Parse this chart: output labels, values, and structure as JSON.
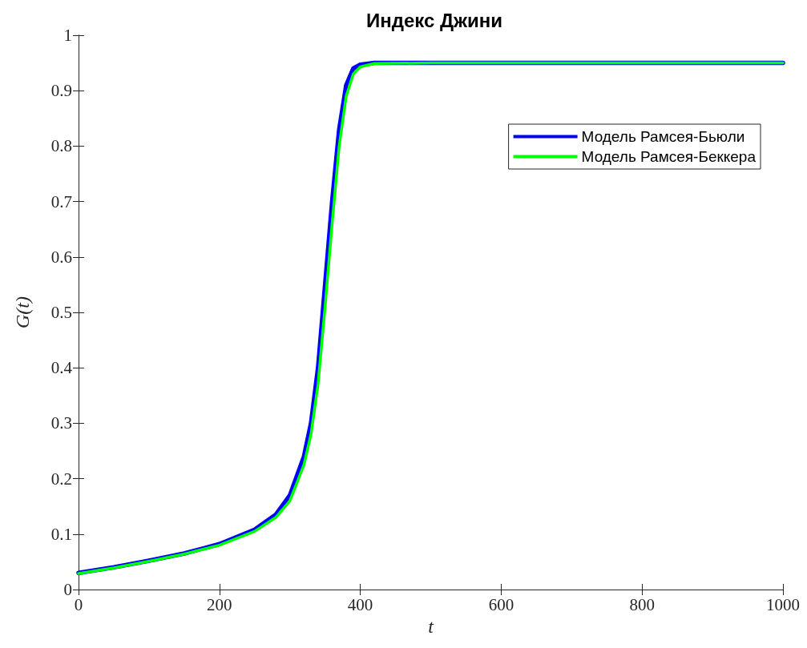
{
  "chart_data": {
    "type": "line",
    "title": "Индекс Джини",
    "xlabel": "t",
    "ylabel": "G(t)",
    "x": [
      0,
      50,
      100,
      150,
      200,
      250,
      280,
      300,
      320,
      330,
      340,
      350,
      360,
      370,
      380,
      390,
      400,
      420,
      500,
      1000
    ],
    "series": [
      {
        "name": "Модель Рамсея-Бьюли",
        "color": "#0000ff",
        "values": [
          0.03,
          0.04,
          0.052,
          0.065,
          0.082,
          0.108,
          0.135,
          0.17,
          0.24,
          0.3,
          0.4,
          0.55,
          0.7,
          0.83,
          0.91,
          0.94,
          0.947,
          0.95,
          0.95,
          0.95
        ]
      },
      {
        "name": "Модель Рамсея-Беккера",
        "color": "#00ff00",
        "values": [
          0.029,
          0.039,
          0.051,
          0.064,
          0.08,
          0.105,
          0.13,
          0.16,
          0.225,
          0.28,
          0.37,
          0.51,
          0.66,
          0.8,
          0.89,
          0.93,
          0.943,
          0.949,
          0.95,
          0.95
        ]
      }
    ],
    "xlim": [
      0,
      1000
    ],
    "xticks": [
      0,
      200,
      400,
      600,
      800,
      1000
    ],
    "ylim": [
      0,
      1
    ],
    "yticks": [
      0,
      0.1,
      0.2,
      0.3,
      0.4,
      0.5,
      0.6,
      0.7,
      0.8,
      0.9,
      1
    ],
    "grid": false,
    "legend": "top right",
    "marker": "none",
    "line_style": "solid"
  }
}
